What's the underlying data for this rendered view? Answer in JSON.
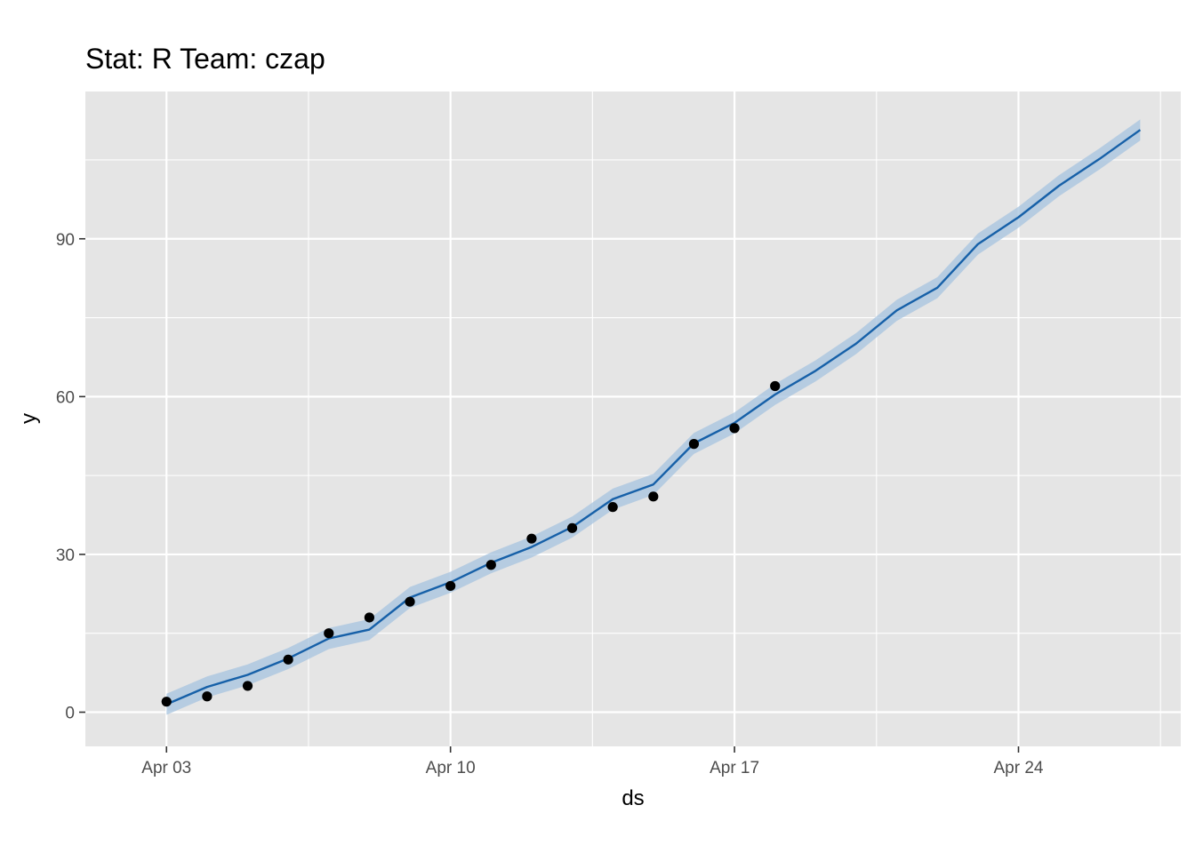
{
  "chart_data": {
    "type": "line",
    "title": "Stat: R Team: czap",
    "xlabel": "ds",
    "ylabel": "y",
    "x_ticks": [
      "Apr 03",
      "Apr 10",
      "Apr 17",
      "Apr 24"
    ],
    "y_ticks": [
      0,
      30,
      60,
      90
    ],
    "xlim": [
      "2020-04-01",
      "2020-04-28"
    ],
    "ylim": [
      -6.5,
      118
    ],
    "grid": true,
    "colors": {
      "panel": "#e5e5e5",
      "grid": "#ffffff",
      "forecast_line": "#1660a8",
      "interval_band": "#a6c3df",
      "points": "#000000",
      "tick_text": "#4d4d4d",
      "ticks": "#333333"
    },
    "series": [
      {
        "type": "line",
        "x": [
          "2020-04-03",
          "2020-04-04",
          "2020-04-05",
          "2020-04-06",
          "2020-04-07",
          "2020-04-08",
          "2020-04-09",
          "2020-04-10",
          "2020-04-11",
          "2020-04-12",
          "2020-04-13",
          "2020-04-14",
          "2020-04-15",
          "2020-04-16",
          "2020-04-17",
          "2020-04-18",
          "2020-04-19",
          "2020-04-20",
          "2020-04-21",
          "2020-04-22",
          "2020-04-23",
          "2020-04-24",
          "2020-04-25",
          "2020-04-26",
          "2020-04-27"
        ],
        "y": [
          1.5,
          4.8,
          7.1,
          10.2,
          14.0,
          15.7,
          21.8,
          24.7,
          28.4,
          31.4,
          35.2,
          40.5,
          43.3,
          51.1,
          55.0,
          60.4,
          64.9,
          70.1,
          76.4,
          80.7,
          89.0,
          94.1,
          100.1,
          105.2,
          110.7
        ],
        "lower": [
          -0.5,
          2.8,
          5.1,
          8.2,
          12.0,
          13.7,
          19.8,
          22.7,
          26.4,
          29.4,
          33.2,
          38.5,
          41.3,
          49.1,
          53.0,
          58.4,
          62.9,
          68.1,
          74.4,
          78.7,
          87.0,
          92.1,
          98.1,
          103.2,
          108.7
        ],
        "upper": [
          3.5,
          6.8,
          9.1,
          12.2,
          16.0,
          17.7,
          23.8,
          26.7,
          30.4,
          33.4,
          37.2,
          42.5,
          45.3,
          53.1,
          57.0,
          62.4,
          66.9,
          72.1,
          78.4,
          82.7,
          91.0,
          96.1,
          102.1,
          107.2,
          112.7
        ]
      },
      {
        "type": "scatter",
        "x": [
          "2020-04-03",
          "2020-04-04",
          "2020-04-05",
          "2020-04-06",
          "2020-04-07",
          "2020-04-08",
          "2020-04-09",
          "2020-04-10",
          "2020-04-11",
          "2020-04-12",
          "2020-04-13",
          "2020-04-14",
          "2020-04-15",
          "2020-04-16",
          "2020-04-17",
          "2020-04-18"
        ],
        "y": [
          2,
          3,
          5,
          10,
          15,
          18,
          21,
          24,
          28,
          33,
          35,
          39,
          41,
          51,
          54,
          62
        ]
      }
    ]
  }
}
